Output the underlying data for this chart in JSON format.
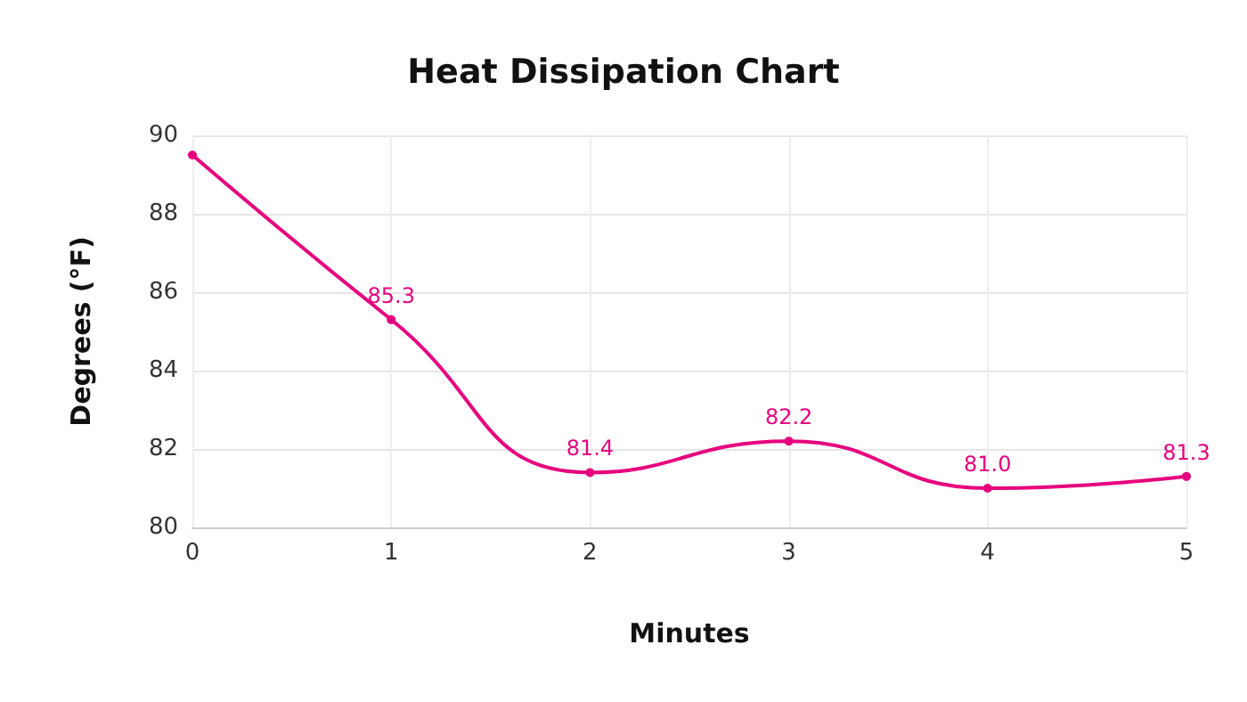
{
  "chart_data": {
    "type": "line",
    "title": "Heat Dissipation Chart",
    "xlabel": "Minutes",
    "ylabel": "Degrees (°F)",
    "x": [
      0,
      1,
      2,
      3,
      4,
      5
    ],
    "series": [
      {
        "color": "#e6007e",
        "values": [
          89.5,
          85.3,
          81.4,
          82.2,
          81.0,
          81.3
        ],
        "value_labels": [
          null,
          "85.3",
          "81.4",
          "82.2",
          "81.0",
          "81.3"
        ]
      }
    ],
    "xlim": [
      0,
      5
    ],
    "xticks": [
      0,
      1,
      2,
      3,
      4,
      5
    ],
    "ylim": [
      80,
      90
    ],
    "yticks": [
      80,
      82,
      84,
      86,
      88,
      90
    ],
    "grid": true,
    "marker": "circle"
  }
}
